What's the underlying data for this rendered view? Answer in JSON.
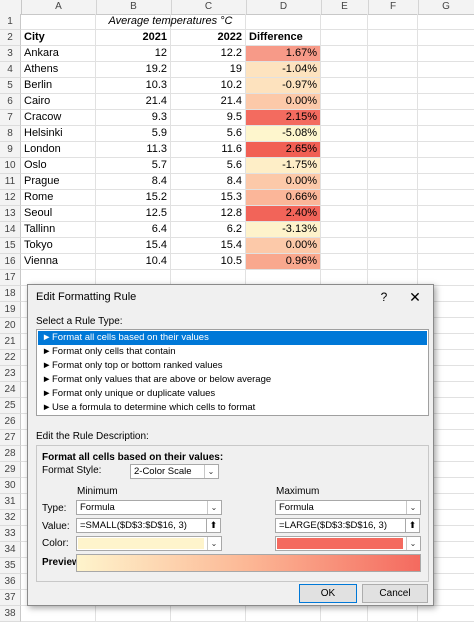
{
  "columns": [
    "A",
    "B",
    "C",
    "D",
    "E",
    "F",
    "G"
  ],
  "rows": [
    "1",
    "2",
    "3",
    "4",
    "5",
    "6",
    "7",
    "8",
    "9",
    "10",
    "11",
    "12",
    "13",
    "14",
    "15",
    "16",
    "17",
    "18",
    "19",
    "20",
    "21",
    "22",
    "23",
    "24",
    "25",
    "26",
    "27",
    "28",
    "29",
    "30",
    "31",
    "32",
    "33",
    "34",
    "35",
    "36",
    "37",
    "38"
  ],
  "sheet": {
    "title": "Average temperatures °C",
    "headers": {
      "city": "City",
      "y2021": "2021",
      "y2022": "2022",
      "diff": "Difference"
    },
    "data": [
      {
        "city": "Ankara",
        "y2021": "12",
        "y2022": "12.2",
        "diff": "1.67%",
        "color": "#f79a88"
      },
      {
        "city": "Athens",
        "y2021": "19.2",
        "y2022": "19",
        "diff": "-1.04%",
        "color": "#fde3bf"
      },
      {
        "city": "Berlin",
        "y2021": "10.3",
        "y2022": "10.2",
        "diff": "-0.97%",
        "color": "#fde2be"
      },
      {
        "city": "Cairo",
        "y2021": "21.4",
        "y2022": "21.4",
        "diff": "0.00%",
        "color": "#fcc9a9"
      },
      {
        "city": "Cracow",
        "y2021": "9.3",
        "y2022": "9.5",
        "diff": "2.15%",
        "color": "#f36b5f"
      },
      {
        "city": "Helsinki",
        "y2021": "5.9",
        "y2022": "5.6",
        "diff": "-5.08%",
        "color": "#fef6cd"
      },
      {
        "city": "London",
        "y2021": "11.3",
        "y2022": "11.6",
        "diff": "2.65%",
        "color": "#f15f54"
      },
      {
        "city": "Oslo",
        "y2021": "5.7",
        "y2022": "5.6",
        "diff": "-1.75%",
        "color": "#feeec7"
      },
      {
        "city": "Prague",
        "y2021": "8.4",
        "y2022": "8.4",
        "diff": "0.00%",
        "color": "#fcc9a9"
      },
      {
        "city": "Rome",
        "y2021": "15.2",
        "y2022": "15.3",
        "diff": "0.66%",
        "color": "#fbb699"
      },
      {
        "city": "Seoul",
        "y2021": "12.5",
        "y2022": "12.8",
        "diff": "2.40%",
        "color": "#f26459"
      },
      {
        "city": "Tallinn",
        "y2021": "6.4",
        "y2022": "6.2",
        "diff": "-3.13%",
        "color": "#fef3cb"
      },
      {
        "city": "Tokyo",
        "y2021": "15.4",
        "y2022": "15.4",
        "diff": "0.00%",
        "color": "#fcc9a9"
      },
      {
        "city": "Vienna",
        "y2021": "10.4",
        "y2022": "10.5",
        "diff": "0.96%",
        "color": "#f9a88e"
      }
    ]
  },
  "dialog": {
    "title": "Edit Formatting Rule",
    "help": "?",
    "close": "✕",
    "select_type_label": "Select a Rule Type:",
    "rule_types": [
      "Format all cells based on their values",
      "Format only cells that contain",
      "Format only top or bottom ranked values",
      "Format only values that are above or below average",
      "Format only unique or duplicate values",
      "Use a formula to determine which cells to format"
    ],
    "edit_desc_label": "Edit the Rule Description:",
    "desc_heading": "Format all cells based on their values:",
    "format_style_label": "Format Style:",
    "format_style_value": "2-Color Scale",
    "minimum_label": "Minimum",
    "maximum_label": "Maximum",
    "type_label": "Type:",
    "value_label": "Value:",
    "color_label": "Color:",
    "min_type": "Formula",
    "max_type": "Formula",
    "min_value": "=SMALL($D$3:$D$16, 3)",
    "max_value": "=LARGE($D$3:$D$16, 3)",
    "min_color": "#fef4cc",
    "max_color": "#f46a5f",
    "preview_label": "Preview:",
    "ok_label": "OK",
    "cancel_label": "Cancel"
  }
}
